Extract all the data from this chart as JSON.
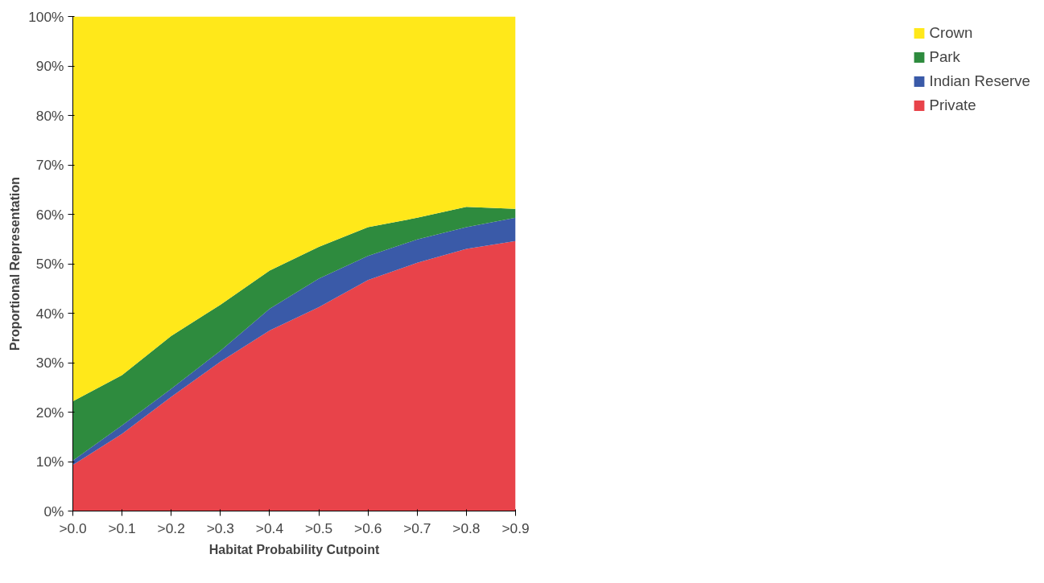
{
  "chart_data": {
    "type": "area",
    "stacked": true,
    "xlabel": "Habitat Probability Cutpoint",
    "ylabel": "Proportional Representation",
    "categories": [
      ">0.0",
      ">0.1",
      ">0.2",
      ">0.3",
      ">0.4",
      ">0.5",
      ">0.6",
      ">0.7",
      ">0.8",
      ">0.9"
    ],
    "series": [
      {
        "name": "Private",
        "color": "#e8434a",
        "values": [
          9.3,
          15.6,
          23.1,
          30.2,
          36.5,
          41.2,
          46.7,
          50.2,
          53.0,
          54.6
        ]
      },
      {
        "name": "Indian Reserve",
        "color": "#3a5aa8",
        "values": [
          0.9,
          1.7,
          1.6,
          2.2,
          4.4,
          5.8,
          4.9,
          4.7,
          4.4,
          4.7
        ]
      },
      {
        "name": "Park",
        "color": "#2e8b3e",
        "values": [
          12.0,
          10.2,
          10.7,
          9.3,
          7.7,
          6.4,
          5.8,
          4.4,
          4.1,
          1.8
        ]
      },
      {
        "name": "Crown",
        "color": "#ffe81a",
        "values": [
          77.8,
          72.5,
          64.6,
          58.3,
          51.4,
          46.6,
          42.6,
          40.7,
          38.5,
          38.9
        ]
      }
    ],
    "ylim": [
      0,
      100
    ],
    "yticks": [
      {
        "value": 0,
        "label": "0%"
      },
      {
        "value": 10,
        "label": "10%"
      },
      {
        "value": 20,
        "label": "20%"
      },
      {
        "value": 30,
        "label": "30%"
      },
      {
        "value": 40,
        "label": "40%"
      },
      {
        "value": 50,
        "label": "50%"
      },
      {
        "value": 60,
        "label": "60%"
      },
      {
        "value": 70,
        "label": "70%"
      },
      {
        "value": 80,
        "label": "80%"
      },
      {
        "value": 90,
        "label": "90%"
      },
      {
        "value": 100,
        "label": "100%"
      }
    ],
    "grid": false,
    "legend": "right"
  }
}
